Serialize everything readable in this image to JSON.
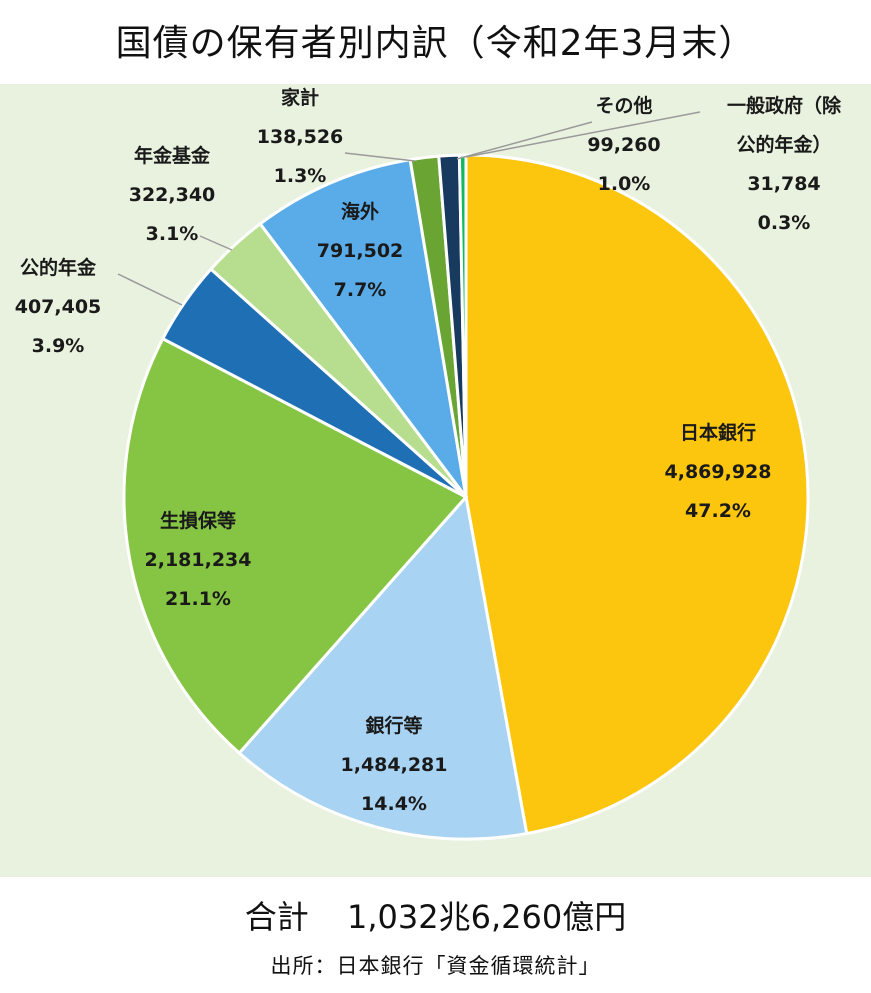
{
  "title": "国債の保有者別内訳（令和2年3月末）",
  "chart_data": {
    "type": "pie",
    "unit": "億円",
    "slices": [
      {
        "label": "日本銀行",
        "value": 4869928,
        "value_text": "4,869,928",
        "percent_text": "47.2%",
        "color": "#fcc60f"
      },
      {
        "label": "銀行等",
        "value": 1484281,
        "value_text": "1,484,281",
        "percent_text": "14.4%",
        "color": "#a9d3f2"
      },
      {
        "label": "生損保等",
        "value": 2181234,
        "value_text": "2,181,234",
        "percent_text": "21.1%",
        "color": "#86c543"
      },
      {
        "label": "公的年金",
        "value": 407405,
        "value_text": "407,405",
        "percent_text": "3.9%",
        "color": "#1f6fb4"
      },
      {
        "label": "年金基金",
        "value": 322340,
        "value_text": "322,340",
        "percent_text": "3.1%",
        "color": "#b7dd8e"
      },
      {
        "label": "海外",
        "value": 791502,
        "value_text": "791,502",
        "percent_text": "7.7%",
        "color": "#5aace8"
      },
      {
        "label": "家計",
        "value": 138526,
        "value_text": "138,526",
        "percent_text": "1.3%",
        "color": "#6aa534"
      },
      {
        "label": "その他",
        "value": 99260,
        "value_text": "99,260",
        "percent_text": "1.0%",
        "color": "#173a5e"
      },
      {
        "label": "一般政府（除公的年金）",
        "label_lines": [
          "一般政府（除",
          "公的年金）"
        ],
        "value": 31784,
        "value_text": "31,784",
        "percent_text": "0.3%",
        "color": "#10b85e"
      }
    ]
  },
  "total": {
    "label": "合計",
    "value": "1,032兆6,260億円"
  },
  "source": "出所：日本銀行「資金循環統計」"
}
